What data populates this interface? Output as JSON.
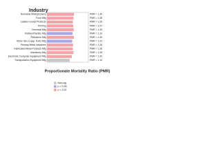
{
  "chart_data": {
    "type": "bar",
    "orientation": "horizontal",
    "title": "Industry",
    "x_label": "Proportionate Mortality Ratio (PMR)",
    "categories": [
      "Nonmetal Mining/Quarry",
      "Food Mfg",
      "Leather Goods Products",
      "Printing",
      "Chemical Mfg",
      "Rubber/Plastics Mfg",
      "Petroleum Mfg",
      "Motor Veh. Equip. Parts Mfg",
      "Primary Metal Industries",
      "Fabricated Metal Products Mfg",
      "Machinery Mfg",
      "Electronic Computer Equipment Mfg",
      "Transportation Equipment Mfg"
    ],
    "values": [
      1.3,
      1.28,
      1.25,
      1.27,
      1.29,
      1.24,
      1.3,
      1.22,
      1.26,
      1.25,
      1.28,
      1.2,
      1.1
    ],
    "value_labels": [
      "PMR = 1.30",
      "PMR = 1.28",
      "PMR = 1.25",
      "PMR = 1.27",
      "PMR = 1.29",
      "PMR = 1.24",
      "PMR = 1.30",
      "PMR = 1.22",
      "PMR = 1.26",
      "PMR = 1.25",
      "PMR = 1.28",
      "PMR = 1.20",
      "PMR = 1.10"
    ],
    "bar_colors": [
      "#f4a3a8",
      "#f4a3a8",
      "#f4a3a8",
      "#f4a3a8",
      "#f4a3a8",
      "#a8a8e8",
      "#f4a3a8",
      "#a8a8e8",
      "#f4a3a8",
      "#f4a3a8",
      "#f4a3a8",
      "#f4a3a8",
      "#c8c8c8"
    ],
    "xlim": [
      0,
      2
    ],
    "legend": [
      {
        "name": "Non-sig",
        "color": "#c8c8c8"
      },
      {
        "name": "p < 0.05",
        "color": "#a8a8e8"
      },
      {
        "name": "p < 0.01",
        "color": "#f4a3a8"
      }
    ]
  }
}
